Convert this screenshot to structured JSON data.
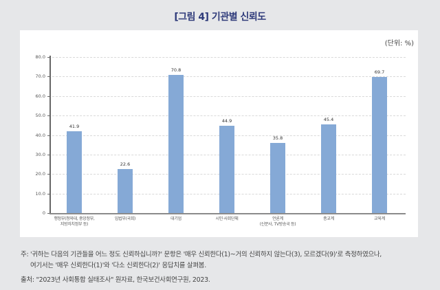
{
  "figure": {
    "title": "[그림 4] 기관별 신뢰도",
    "unit": "(단위: %)"
  },
  "chart_data": {
    "type": "bar",
    "title": "[그림 4] 기관별 신뢰도",
    "xlabel": "",
    "ylabel": "",
    "unit": "%",
    "ylim": [
      0,
      80
    ],
    "yticks": [
      "80.0",
      "70.0",
      "60.0",
      "50.0",
      "40.0",
      "30.0",
      "20.0",
      "10.0",
      "0"
    ],
    "grid": true,
    "legend": null,
    "categories": [
      [
        "행정부(청와대, 중앙정부,",
        "지방자치정부 등)"
      ],
      [
        "입법부(국회)"
      ],
      [
        "대기업"
      ],
      [
        "시민·사회단체"
      ],
      [
        "언론계",
        "(신문사, TV방송국 등)"
      ],
      [
        "종교계"
      ],
      [
        "교육계"
      ]
    ],
    "values": [
      41.9,
      22.6,
      70.8,
      44.9,
      35.8,
      45.4,
      69.7
    ],
    "value_labels": [
      "41.9",
      "22.6",
      "70.8",
      "44.9",
      "35.8",
      "45.4",
      "69.7"
    ],
    "bar_color": "#85a9d6"
  },
  "notes": {
    "note_line1": "주: '귀하는 다음의 기관들을 어느 정도 신뢰하십니까?' 문항은 '매우 신뢰한다(1)~거의 신뢰하지 않는다(3), 모르겠다(9)'로 측정하였으나,",
    "note_line2": "여기서는 '매우 신뢰한다(1)'와 '다소 신뢰한다(2)' 응답치를 살펴봄.",
    "source": "출처: \"2023년 사회통합 실태조사\" 원자료, 한국보건사회연구원, 2023."
  },
  "colors": {
    "title": "#2e3a7a",
    "bar": "#85a9d6",
    "background": "#e6e7e9",
    "panel": "#ffffff"
  }
}
